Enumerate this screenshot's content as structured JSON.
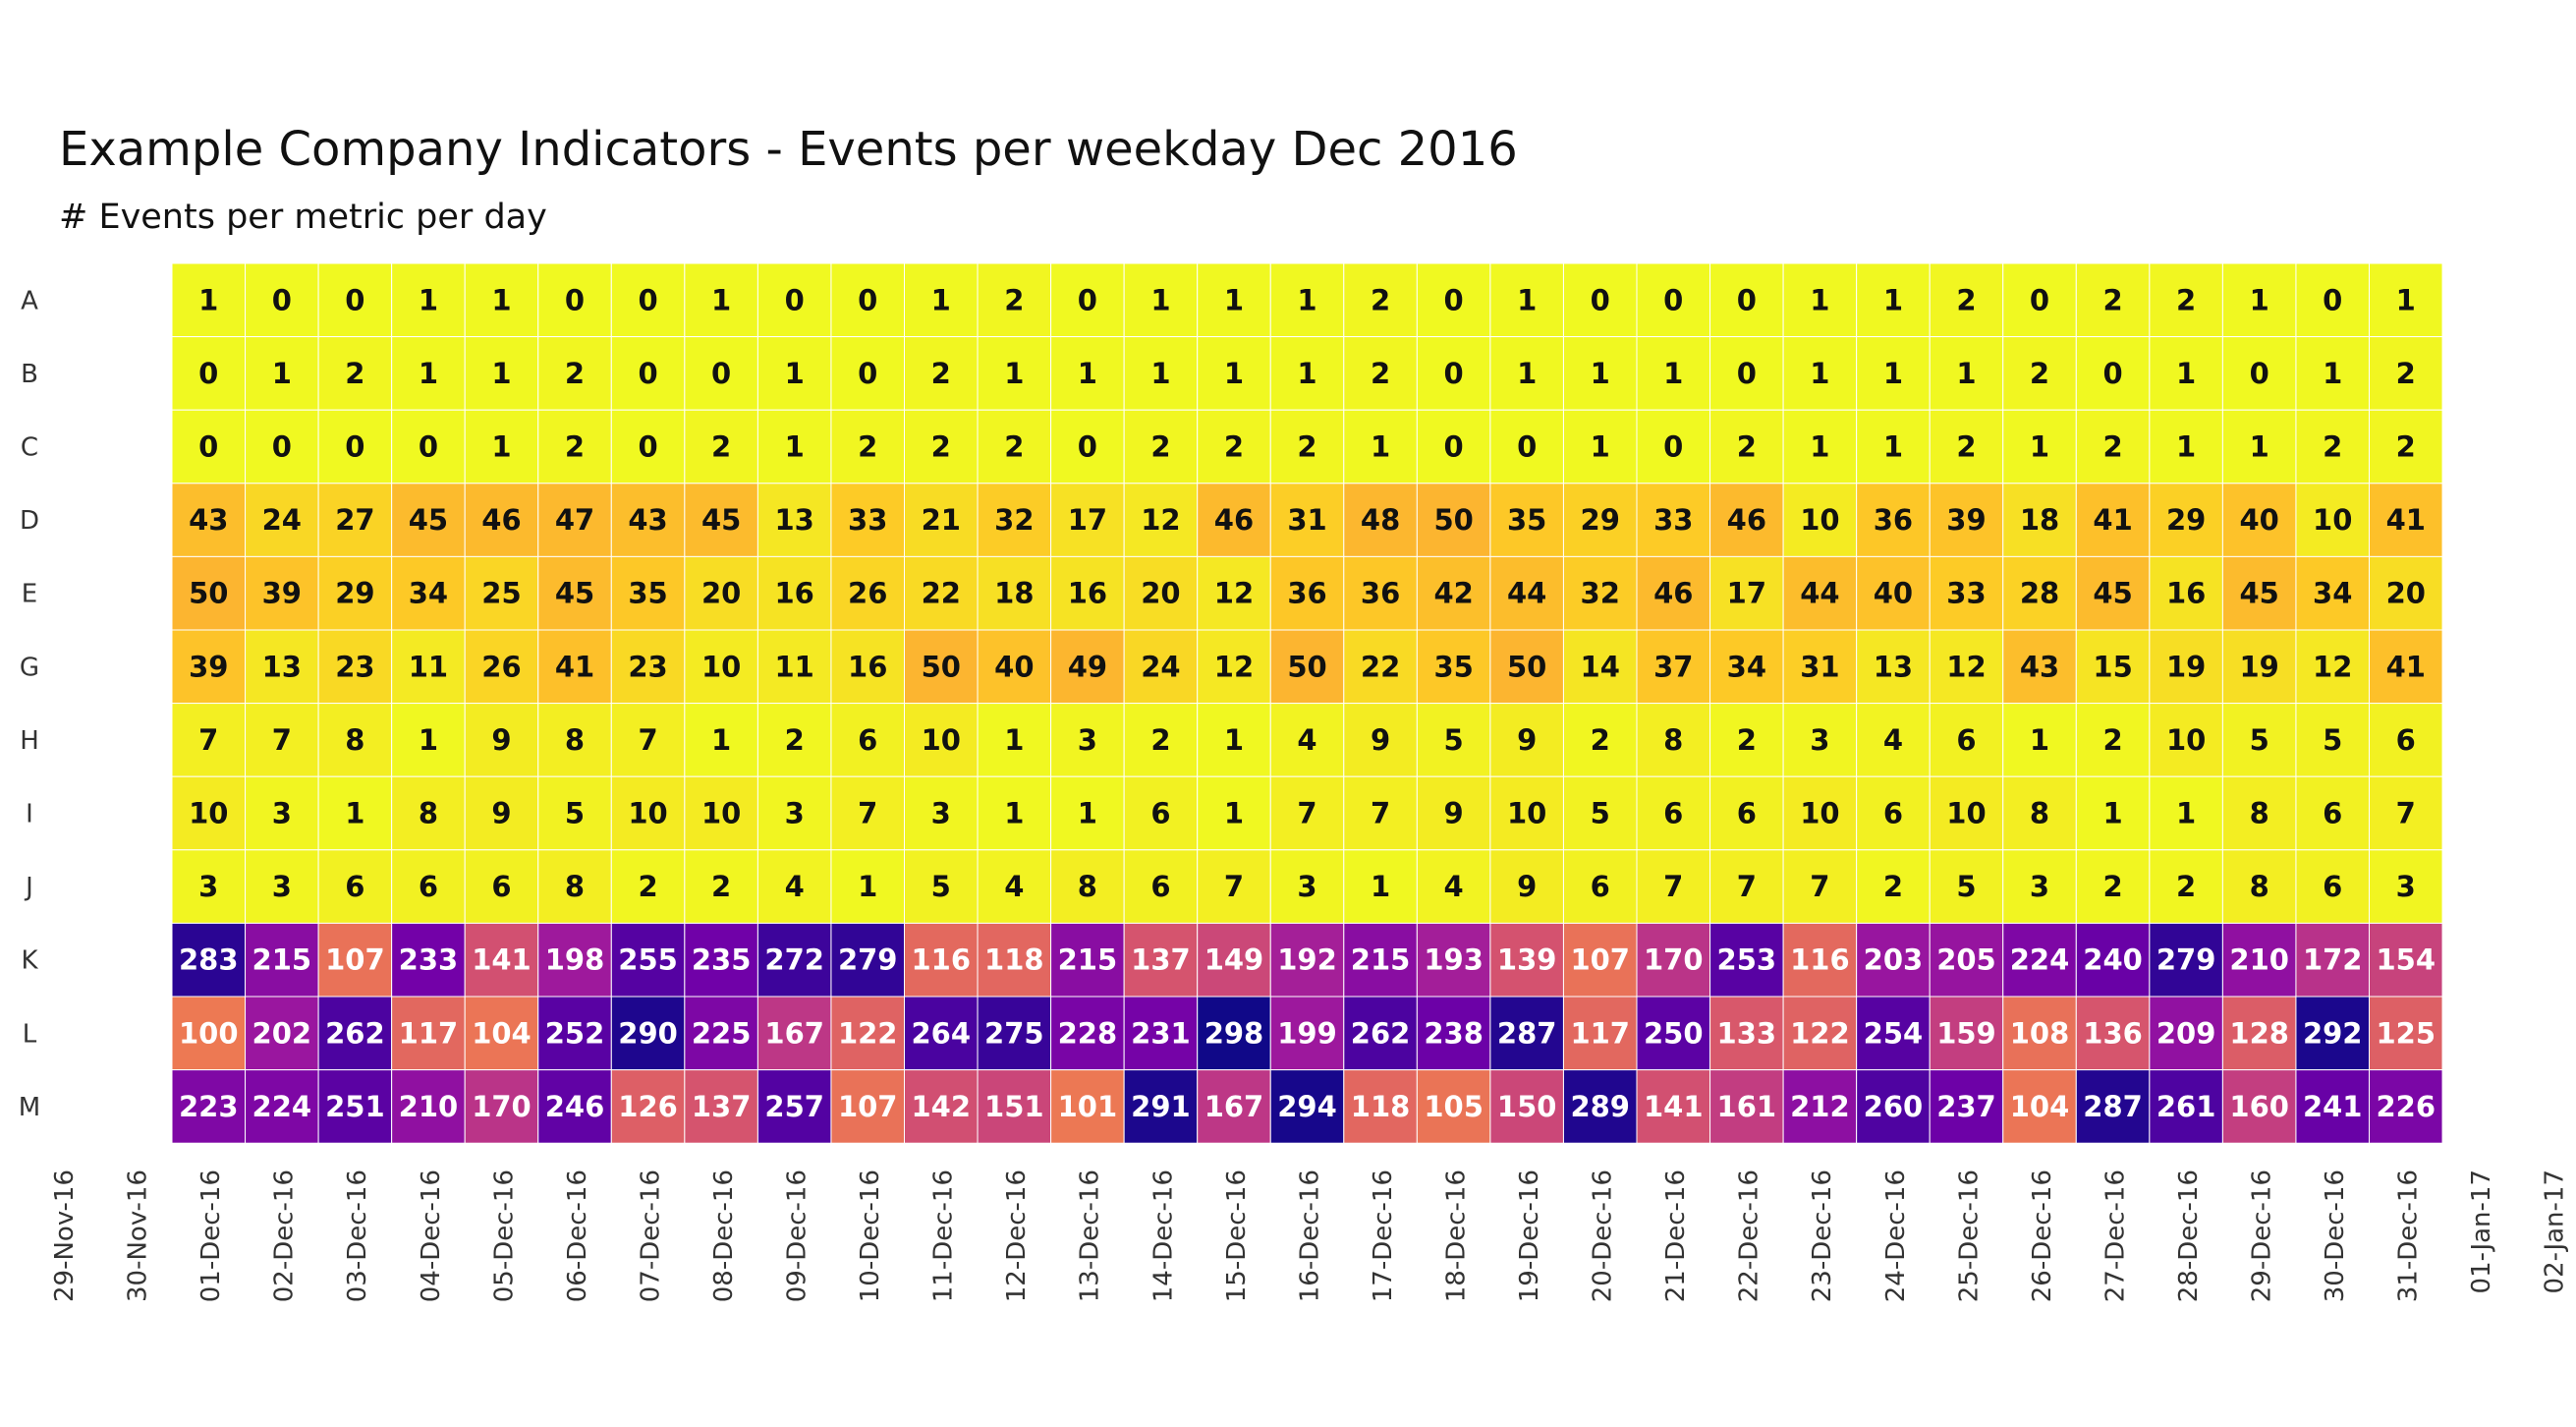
{
  "chart_data": {
    "type": "heatmap",
    "title": "Example Company Indicators - Events per weekday Dec 2016",
    "subtitle": "# Events per metric per day",
    "x_ticks": [
      "29-Nov-16",
      "30-Nov-16",
      "01-Dec-16",
      "02-Dec-16",
      "03-Dec-16",
      "04-Dec-16",
      "05-Dec-16",
      "06-Dec-16",
      "07-Dec-16",
      "08-Dec-16",
      "09-Dec-16",
      "10-Dec-16",
      "11-Dec-16",
      "12-Dec-16",
      "13-Dec-16",
      "14-Dec-16",
      "15-Dec-16",
      "16-Dec-16",
      "17-Dec-16",
      "18-Dec-16",
      "19-Dec-16",
      "20-Dec-16",
      "21-Dec-16",
      "22-Dec-16",
      "23-Dec-16",
      "24-Dec-16",
      "25-Dec-16",
      "26-Dec-16",
      "27-Dec-16",
      "28-Dec-16",
      "29-Dec-16",
      "30-Dec-16",
      "31-Dec-16",
      "01-Jan-17",
      "02-Jan-17"
    ],
    "x": [
      "01-Dec-16",
      "02-Dec-16",
      "03-Dec-16",
      "04-Dec-16",
      "05-Dec-16",
      "06-Dec-16",
      "07-Dec-16",
      "08-Dec-16",
      "09-Dec-16",
      "10-Dec-16",
      "11-Dec-16",
      "12-Dec-16",
      "13-Dec-16",
      "14-Dec-16",
      "15-Dec-16",
      "16-Dec-16",
      "17-Dec-16",
      "18-Dec-16",
      "19-Dec-16",
      "20-Dec-16",
      "21-Dec-16",
      "22-Dec-16",
      "23-Dec-16",
      "24-Dec-16",
      "25-Dec-16",
      "26-Dec-16",
      "27-Dec-16",
      "28-Dec-16",
      "29-Dec-16",
      "30-Dec-16",
      "31-Dec-16"
    ],
    "y": [
      "A",
      "B",
      "C",
      "D",
      "E",
      "G",
      "H",
      "I",
      "J",
      "K",
      "L",
      "M"
    ],
    "values": [
      [
        1,
        0,
        0,
        1,
        1,
        0,
        0,
        1,
        0,
        0,
        1,
        2,
        0,
        1,
        1,
        1,
        2,
        0,
        1,
        0,
        0,
        0,
        1,
        1,
        2,
        0,
        2,
        2,
        1,
        0,
        1
      ],
      [
        0,
        1,
        2,
        1,
        1,
        2,
        0,
        0,
        1,
        0,
        2,
        1,
        1,
        1,
        1,
        1,
        2,
        0,
        1,
        1,
        1,
        0,
        1,
        1,
        1,
        2,
        0,
        1,
        0,
        1,
        2
      ],
      [
        0,
        0,
        0,
        0,
        1,
        2,
        0,
        2,
        1,
        2,
        2,
        2,
        0,
        2,
        2,
        2,
        1,
        0,
        0,
        1,
        0,
        2,
        1,
        1,
        2,
        1,
        2,
        1,
        1,
        2,
        2
      ],
      [
        43,
        24,
        27,
        45,
        46,
        47,
        43,
        45,
        13,
        33,
        21,
        32,
        17,
        12,
        46,
        31,
        48,
        50,
        35,
        29,
        33,
        46,
        10,
        36,
        39,
        18,
        41,
        29,
        40,
        10,
        41
      ],
      [
        50,
        39,
        29,
        34,
        25,
        45,
        35,
        20,
        16,
        26,
        22,
        18,
        16,
        20,
        12,
        36,
        36,
        42,
        44,
        32,
        46,
        17,
        44,
        40,
        33,
        28,
        45,
        16,
        45,
        34,
        20
      ],
      [
        39,
        13,
        23,
        11,
        26,
        41,
        23,
        10,
        11,
        16,
        50,
        40,
        49,
        24,
        12,
        50,
        22,
        35,
        50,
        14,
        37,
        34,
        31,
        13,
        12,
        43,
        15,
        19,
        19,
        12,
        41
      ],
      [
        7,
        7,
        8,
        1,
        9,
        8,
        7,
        1,
        2,
        6,
        10,
        1,
        3,
        2,
        1,
        4,
        9,
        5,
        9,
        2,
        8,
        2,
        3,
        4,
        6,
        1,
        2,
        10,
        5,
        5,
        6
      ],
      [
        10,
        3,
        1,
        8,
        9,
        5,
        10,
        10,
        3,
        7,
        3,
        1,
        1,
        6,
        1,
        7,
        7,
        9,
        10,
        5,
        6,
        6,
        10,
        6,
        10,
        8,
        1,
        1,
        8,
        6,
        7
      ],
      [
        3,
        3,
        6,
        6,
        6,
        8,
        2,
        2,
        4,
        1,
        5,
        4,
        8,
        6,
        7,
        3,
        1,
        4,
        9,
        6,
        7,
        7,
        7,
        2,
        5,
        3,
        2,
        2,
        8,
        6,
        3
      ],
      [
        283,
        215,
        107,
        233,
        141,
        198,
        255,
        235,
        272,
        279,
        116,
        118,
        215,
        137,
        149,
        192,
        215,
        193,
        139,
        107,
        170,
        253,
        116,
        203,
        205,
        224,
        240,
        279,
        210,
        172,
        154
      ],
      [
        100,
        202,
        262,
        117,
        104,
        252,
        290,
        225,
        167,
        122,
        264,
        275,
        228,
        231,
        298,
        199,
        262,
        238,
        287,
        117,
        250,
        133,
        122,
        254,
        159,
        108,
        136,
        209,
        128,
        292,
        125
      ],
      [
        223,
        224,
        251,
        210,
        170,
        246,
        126,
        137,
        257,
        107,
        142,
        151,
        101,
        291,
        167,
        294,
        118,
        105,
        150,
        289,
        141,
        161,
        212,
        260,
        237,
        104,
        287,
        261,
        160,
        241,
        226
      ]
    ],
    "colorscale": "plasma",
    "zlim": [
      0,
      300
    ],
    "grid": false,
    "legend": "none"
  }
}
